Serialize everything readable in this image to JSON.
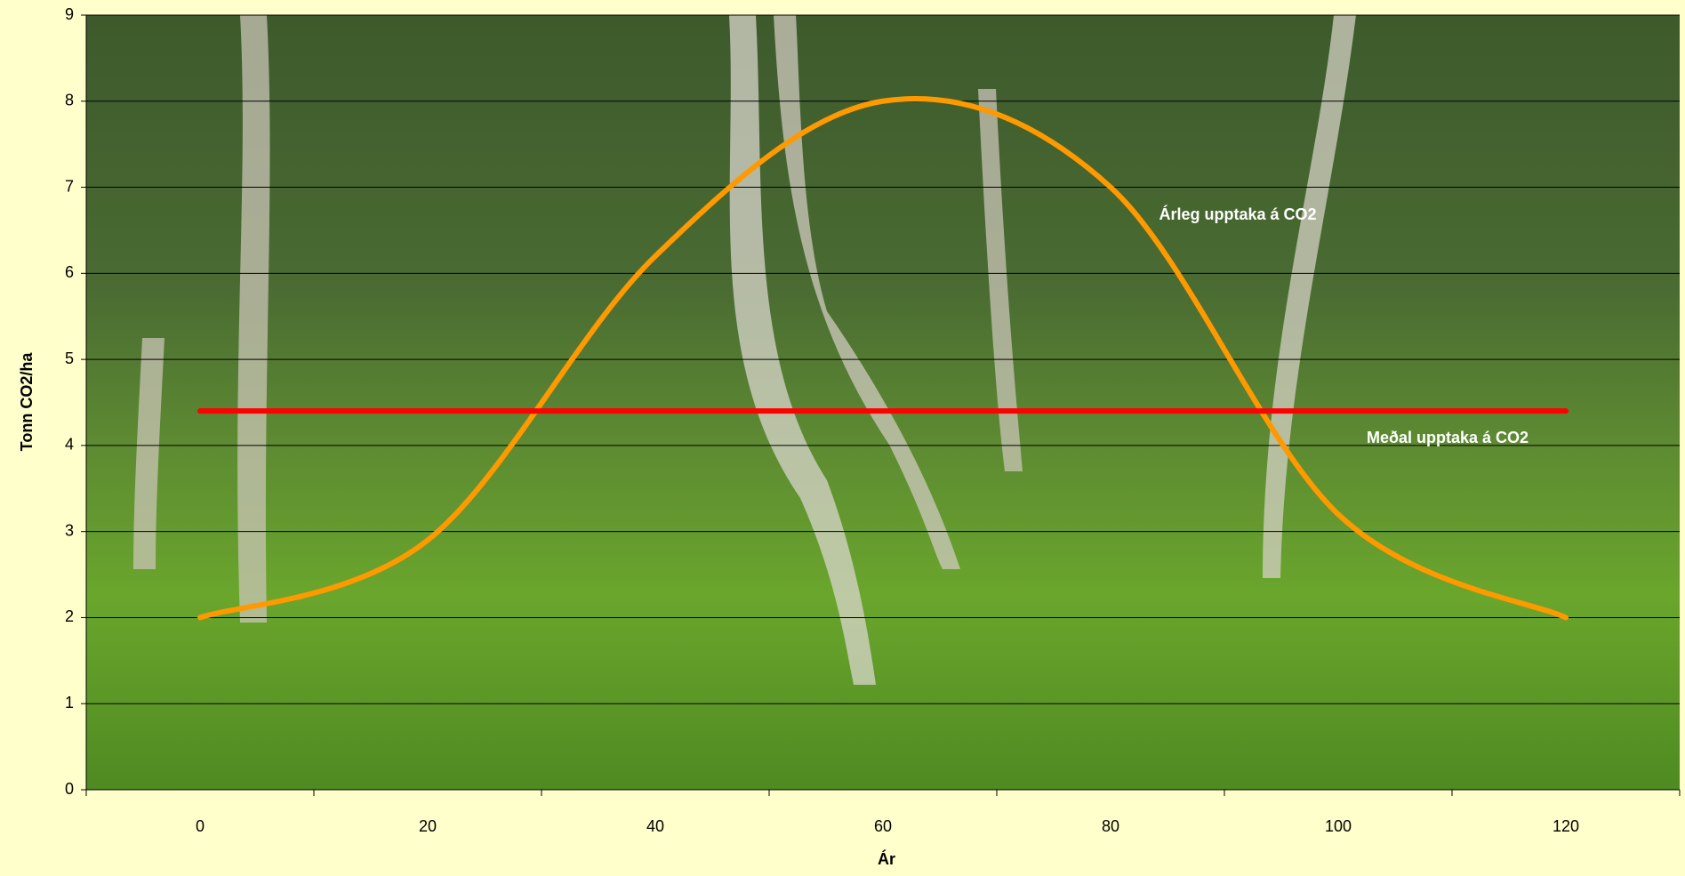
{
  "chart_data": {
    "type": "line",
    "x_label": "Ár",
    "y_label": "Tonn CO2/ha",
    "categories": [
      "0",
      "20",
      "40",
      "60",
      "80",
      "100",
      "120"
    ],
    "series": [
      {
        "name": "Árleg upptaka á CO2",
        "color": "#ff9900",
        "smooth": true,
        "values": [
          2.0,
          2.9,
          6.2,
          8.0,
          7.0,
          3.2,
          2.0
        ]
      },
      {
        "name": "Meðal upptaka á CO2",
        "color": "#ff0000",
        "smooth": false,
        "values": [
          4.4,
          4.4,
          4.4,
          4.4,
          4.4,
          4.4,
          4.4
        ]
      }
    ],
    "ylim": [
      0,
      9
    ],
    "yticks": [
      0,
      1,
      2,
      3,
      4,
      5,
      6,
      7,
      8,
      9
    ],
    "grid": true
  }
}
